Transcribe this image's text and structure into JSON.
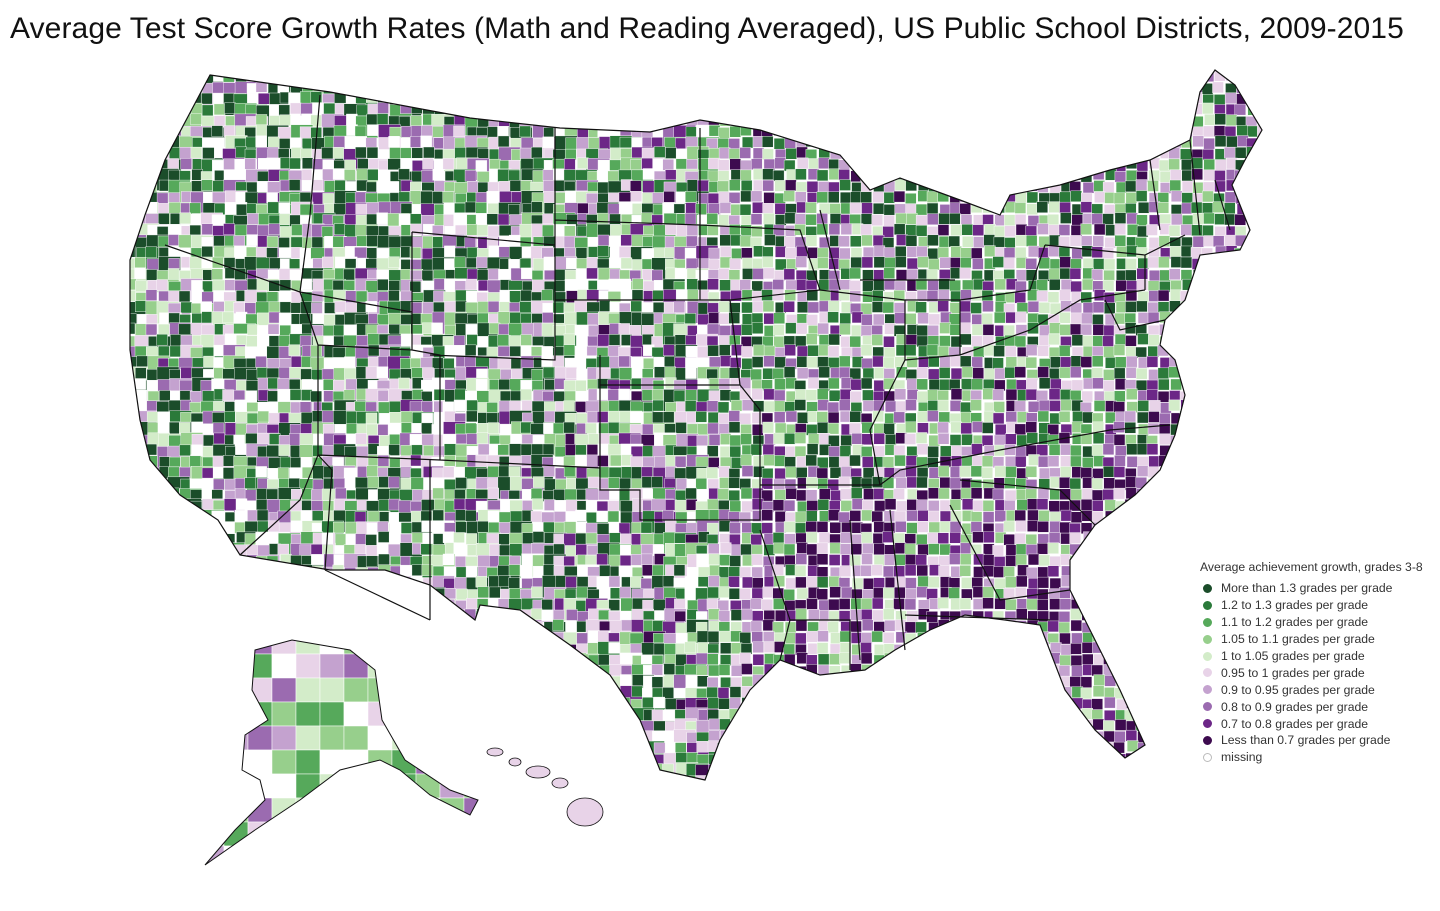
{
  "title": "Average Test Score Growth Rates (Math and Reading Averaged), US Public School Districts, 2009-2015",
  "legend": {
    "title": "Average achievement growth, grades 3-8",
    "items": [
      {
        "label": "More than 1.3 grades per grade",
        "color": "#1b4d2a"
      },
      {
        "label": "1.2 to 1.3 grades per grade",
        "color": "#2b7a3a"
      },
      {
        "label": "1.1 to 1.2 grades per grade",
        "color": "#56a95b"
      },
      {
        "label": "1.05 to 1.1 grades per grade",
        "color": "#97cf8c"
      },
      {
        "label": "1 to 1.05 grades per grade",
        "color": "#d3ecc9"
      },
      {
        "label": "0.95 to 1 grades per grade",
        "color": "#e8d3e8"
      },
      {
        "label": "0.9 to 0.95 grades per grade",
        "color": "#c4a2cf"
      },
      {
        "label": "0.8 to 0.9 grades per grade",
        "color": "#9b6bb0"
      },
      {
        "label": "0.7 to 0.8 grades per grade",
        "color": "#6c2787"
      },
      {
        "label": "Less than 0.7 grades per grade",
        "color": "#3d0b4f"
      },
      {
        "label": "missing",
        "color": "#ffffff"
      }
    ]
  }
}
